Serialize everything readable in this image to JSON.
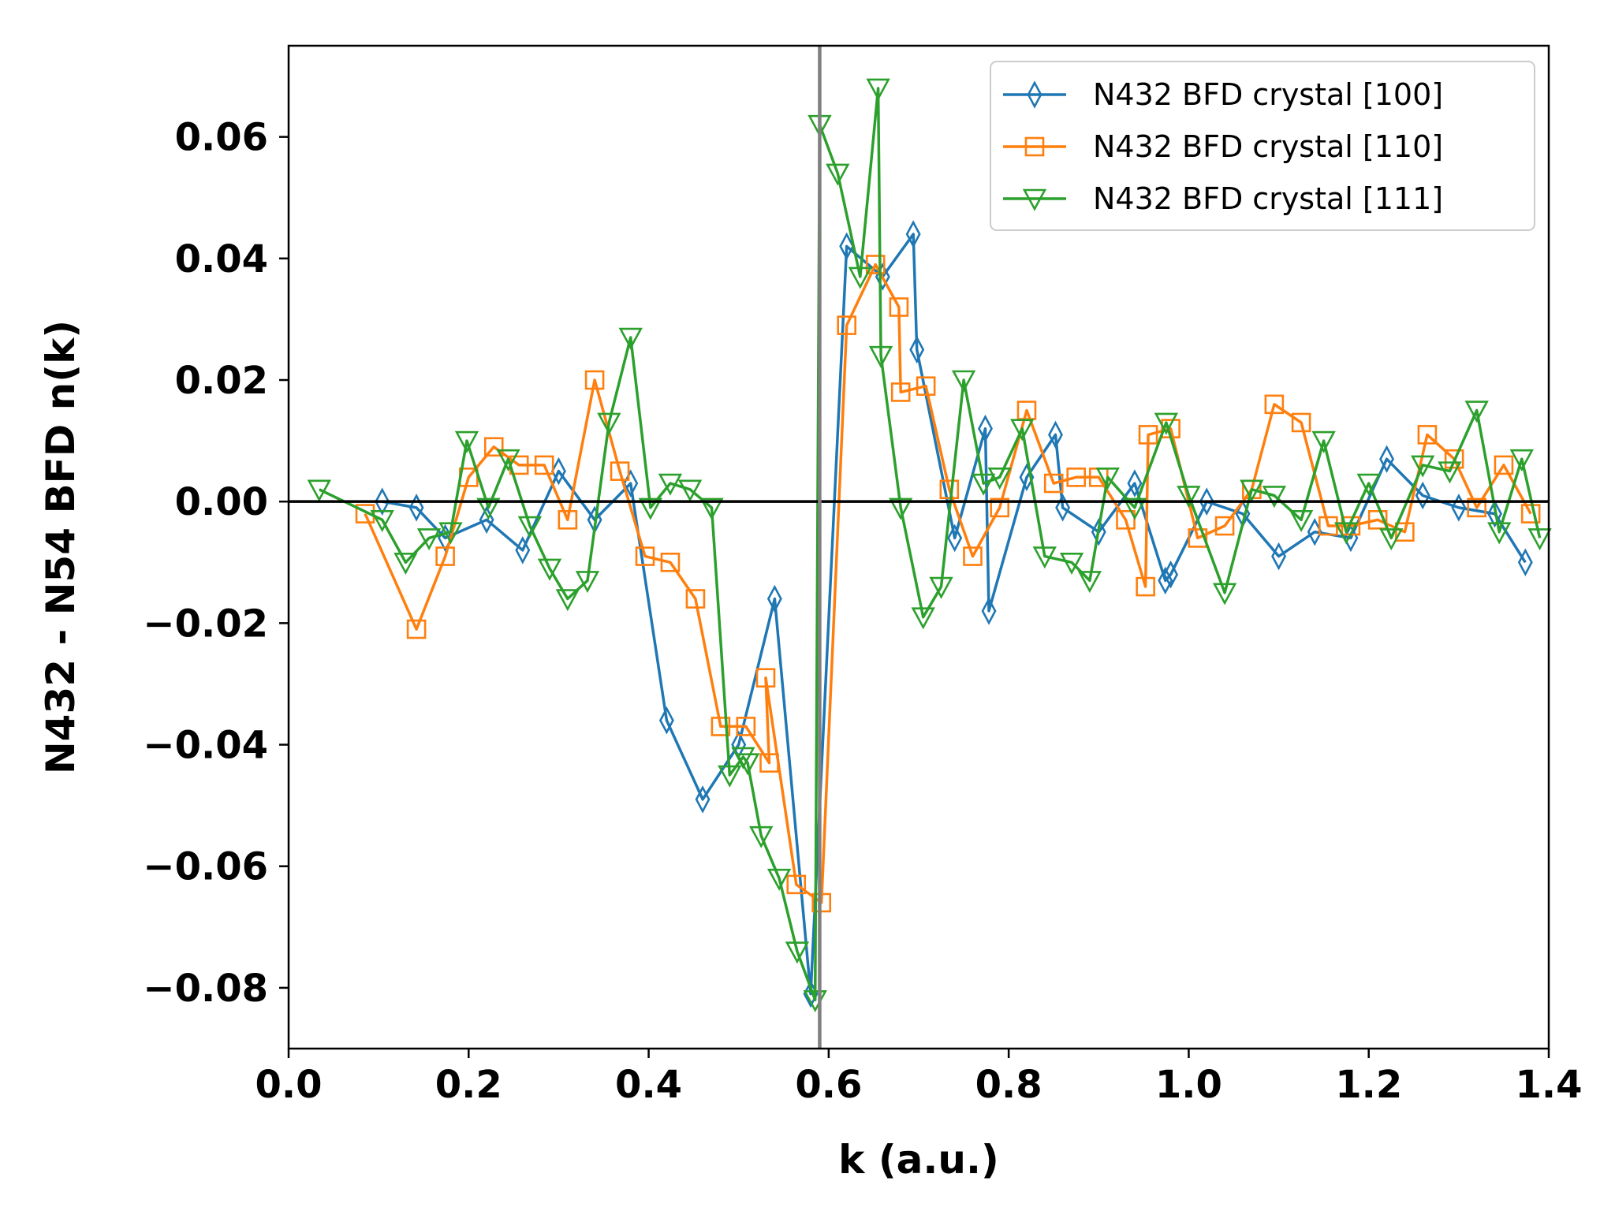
{
  "chart_data": {
    "type": "line",
    "title": "",
    "xlabel": "k (a.u.)",
    "ylabel": "N432 - N54 BFD n(k)",
    "xlim": [
      0.0,
      1.4
    ],
    "ylim": [
      -0.09,
      0.075
    ],
    "xticks": [
      0.0,
      0.2,
      0.4,
      0.6,
      0.8,
      1.0,
      1.2,
      1.4
    ],
    "xtick_labels": [
      "0.0",
      "0.2",
      "0.4",
      "0.6",
      "0.8",
      "1.0",
      "1.2",
      "1.4"
    ],
    "yticks": [
      -0.08,
      -0.06,
      -0.04,
      -0.02,
      0.0,
      0.02,
      0.04,
      0.06
    ],
    "ytick_labels": [
      "−0.08",
      "−0.06",
      "−0.04",
      "−0.02",
      "0.00",
      "0.02",
      "0.04",
      "0.06"
    ],
    "legend_position": "top-right",
    "grid": false,
    "reference_lines": {
      "horizontal_y": 0.0,
      "horizontal_color": "#000000",
      "vertical_x": 0.59,
      "vertical_color": "#808080"
    },
    "series": [
      {
        "name": "N432 BFD crystal [100]",
        "color": "#1f77b4",
        "marker": "thin-diamond",
        "x": [
          0.104,
          0.142,
          0.174,
          0.22,
          0.26,
          0.3,
          0.34,
          0.38,
          0.42,
          0.46,
          0.5,
          0.54,
          0.58,
          0.62,
          0.66,
          0.694,
          0.698,
          0.74,
          0.774,
          0.778,
          0.82,
          0.852,
          0.86,
          0.9,
          0.94,
          0.974,
          0.98,
          1.02,
          1.06,
          1.1,
          1.14,
          1.18,
          1.22,
          1.26,
          1.3,
          1.34,
          1.374
        ],
        "y": [
          0.0,
          -0.001,
          -0.006,
          -0.003,
          -0.008,
          0.005,
          -0.003,
          0.003,
          -0.036,
          -0.049,
          -0.04,
          -0.016,
          -0.081,
          0.042,
          0.037,
          0.044,
          0.025,
          -0.006,
          0.012,
          -0.018,
          0.004,
          0.011,
          -0.001,
          -0.005,
          0.003,
          -0.013,
          -0.012,
          0.0,
          -0.002,
          -0.009,
          -0.005,
          -0.006,
          0.007,
          0.001,
          -0.001,
          -0.002,
          -0.01
        ]
      },
      {
        "name": "N432 BFD crystal [110]",
        "color": "#ff7f0e",
        "marker": "square",
        "x": [
          0.085,
          0.142,
          0.174,
          0.2,
          0.228,
          0.256,
          0.284,
          0.31,
          0.34,
          0.368,
          0.396,
          0.424,
          0.452,
          0.48,
          0.508,
          0.534,
          0.53,
          0.564,
          0.592,
          0.62,
          0.652,
          0.678,
          0.68,
          0.708,
          0.734,
          0.76,
          0.79,
          0.82,
          0.85,
          0.875,
          0.9,
          0.93,
          0.952,
          0.955,
          0.98,
          1.01,
          1.04,
          1.07,
          1.095,
          1.125,
          1.155,
          1.18,
          1.21,
          1.24,
          1.265,
          1.295,
          1.32,
          1.35,
          1.38
        ],
        "y": [
          -0.002,
          -0.021,
          -0.009,
          0.004,
          0.009,
          0.006,
          0.006,
          -0.003,
          0.02,
          0.005,
          -0.009,
          -0.01,
          -0.016,
          -0.037,
          -0.037,
          -0.043,
          -0.029,
          -0.063,
          -0.066,
          0.029,
          0.039,
          0.032,
          0.018,
          0.019,
          0.002,
          -0.009,
          -0.001,
          0.015,
          0.003,
          0.004,
          0.004,
          -0.003,
          -0.014,
          0.011,
          0.012,
          -0.006,
          -0.004,
          0.002,
          0.016,
          0.013,
          -0.004,
          -0.004,
          -0.003,
          -0.005,
          0.011,
          0.007,
          -0.001,
          0.006,
          -0.002
        ]
      },
      {
        "name": "N432 BFD crystal [111]",
        "color": "#2ca02c",
        "marker": "triangle-down",
        "x": [
          0.034,
          0.104,
          0.13,
          0.156,
          0.18,
          0.198,
          0.222,
          0.244,
          0.268,
          0.29,
          0.31,
          0.332,
          0.356,
          0.38,
          0.402,
          0.424,
          0.446,
          0.47,
          0.49,
          0.505,
          0.51,
          0.525,
          0.545,
          0.565,
          0.585,
          0.59,
          0.61,
          0.635,
          0.655,
          0.658,
          0.68,
          0.705,
          0.725,
          0.75,
          0.772,
          0.79,
          0.815,
          0.84,
          0.87,
          0.89,
          0.91,
          0.94,
          0.975,
          1.0,
          1.04,
          1.07,
          1.095,
          1.125,
          1.15,
          1.175,
          1.2,
          1.225,
          1.26,
          1.29,
          1.32,
          1.345,
          1.37,
          1.39
        ],
        "y": [
          0.002,
          -0.003,
          -0.01,
          -0.006,
          -0.005,
          0.01,
          -0.001,
          0.007,
          -0.004,
          -0.011,
          -0.016,
          -0.013,
          0.013,
          0.027,
          -0.001,
          0.003,
          0.002,
          -0.001,
          -0.045,
          -0.042,
          -0.043,
          -0.055,
          -0.062,
          -0.074,
          -0.082,
          0.062,
          0.054,
          0.037,
          0.068,
          0.024,
          -0.001,
          -0.019,
          -0.014,
          0.02,
          0.003,
          0.004,
          0.012,
          -0.009,
          -0.01,
          -0.013,
          0.004,
          -0.001,
          0.013,
          0.001,
          -0.015,
          0.002,
          0.001,
          -0.003,
          0.01,
          -0.005,
          0.003,
          -0.006,
          0.006,
          0.005,
          0.015,
          -0.005,
          0.007,
          -0.006
        ]
      }
    ]
  }
}
